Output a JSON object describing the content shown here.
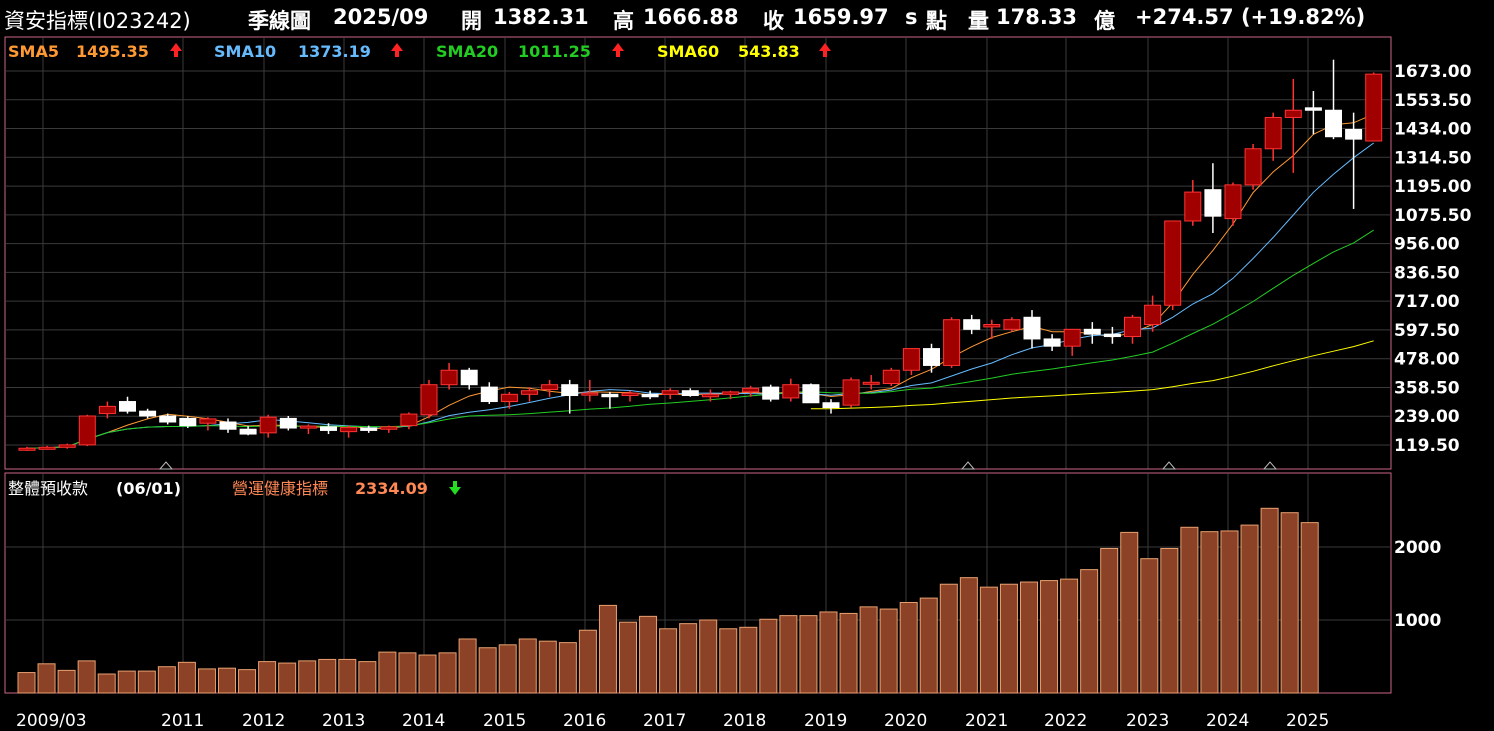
{
  "header": {
    "title": "資安指標(I023242)",
    "period": "季線圖",
    "date": "2025/09",
    "open_label": "開",
    "open": "1382.31",
    "high_label": "高",
    "high": "1666.88",
    "close_label": "收",
    "close": "1659.97",
    "close_suffix": "s",
    "points_label": "點",
    "volume_label": "量",
    "volume": "178.33",
    "volume_unit": "億",
    "change": "+274.57 (+19.82%)"
  },
  "upper_legend": [
    {
      "label": "SMA5",
      "value": "1495.35",
      "arrow": "up",
      "color": "#ff9933"
    },
    {
      "label": "SMA10",
      "value": "1373.19",
      "arrow": "up",
      "color": "#66bbff"
    },
    {
      "label": "SMA20",
      "value": "1011.25",
      "arrow": "up",
      "color": "#22cc22"
    },
    {
      "label": "SMA60",
      "value": "543.83",
      "arrow": "up",
      "color": "#ffff00"
    }
  ],
  "lower_legend": {
    "name": "整體預收款",
    "date": "(06/01)",
    "indicator": "營運健康指標",
    "indicator_value": "2334.09",
    "arrow": "down",
    "indicator_color": "#ff8855"
  },
  "colors": {
    "up_candle": "#a00000",
    "down_candle": "#ffffff",
    "bar_fill": "#8b4226",
    "bar_stroke": "#e8a070",
    "frame": "#cc6688",
    "grid": "#3a3a3a",
    "arrow_up": "#ff2222",
    "arrow_down": "#22dd22"
  },
  "chart_data": [
    {
      "type": "candlestick",
      "title": "資安指標(I023242) 季線圖",
      "x_tick_labels": [
        "2009/03",
        "2011",
        "2012",
        "2013",
        "2014",
        "2015",
        "2016",
        "2017",
        "2018",
        "2019",
        "2020",
        "2021",
        "2022",
        "2023",
        "2024",
        "2025"
      ],
      "y_tick_labels": [
        "1673.00",
        "1553.50",
        "1434.00",
        "1314.50",
        "1195.00",
        "1075.50",
        "956.00",
        "836.50",
        "717.00",
        "597.50",
        "478.00",
        "358.50",
        "239.00",
        "119.50"
      ],
      "ylim": [
        72,
        1722
      ],
      "grid": true,
      "ohlc": [
        [
          100,
          112,
          95,
          106
        ],
        [
          106,
          116,
          100,
          110
        ],
        [
          110,
          125,
          104,
          120
        ],
        [
          120,
          245,
          115,
          240
        ],
        [
          250,
          300,
          230,
          280
        ],
        [
          300,
          320,
          250,
          260
        ],
        [
          260,
          270,
          230,
          240
        ],
        [
          240,
          250,
          205,
          215
        ],
        [
          230,
          240,
          190,
          200
        ],
        [
          210,
          235,
          180,
          228
        ],
        [
          215,
          230,
          170,
          185
        ],
        [
          185,
          200,
          160,
          165
        ],
        [
          170,
          245,
          150,
          235
        ],
        [
          230,
          240,
          180,
          190
        ],
        [
          190,
          205,
          165,
          198
        ],
        [
          195,
          210,
          165,
          180
        ],
        [
          175,
          200,
          150,
          192
        ],
        [
          190,
          200,
          170,
          180
        ],
        [
          185,
          200,
          170,
          195
        ],
        [
          200,
          255,
          185,
          248
        ],
        [
          245,
          390,
          230,
          370
        ],
        [
          370,
          460,
          350,
          430
        ],
        [
          430,
          440,
          350,
          370
        ],
        [
          360,
          380,
          290,
          300
        ],
        [
          300,
          340,
          270,
          330
        ],
        [
          330,
          360,
          300,
          345
        ],
        [
          350,
          390,
          320,
          370
        ],
        [
          370,
          390,
          250,
          325
        ],
        [
          335,
          390,
          300,
          335
        ],
        [
          330,
          340,
          270,
          320
        ],
        [
          325,
          345,
          300,
          335
        ],
        [
          330,
          345,
          310,
          320
        ],
        [
          330,
          355,
          310,
          345
        ],
        [
          345,
          355,
          320,
          325
        ],
        [
          320,
          350,
          300,
          330
        ],
        [
          330,
          345,
          310,
          340
        ],
        [
          340,
          365,
          320,
          355
        ],
        [
          360,
          370,
          300,
          310
        ],
        [
          315,
          395,
          300,
          370
        ],
        [
          370,
          375,
          300,
          295
        ],
        [
          295,
          310,
          250,
          275
        ],
        [
          285,
          400,
          275,
          390
        ],
        [
          380,
          410,
          350,
          380
        ],
        [
          375,
          440,
          365,
          430
        ],
        [
          430,
          520,
          410,
          520
        ],
        [
          520,
          540,
          420,
          450
        ],
        [
          450,
          650,
          440,
          640
        ],
        [
          640,
          660,
          580,
          600
        ],
        [
          610,
          640,
          560,
          620
        ],
        [
          600,
          650,
          590,
          640
        ],
        [
          650,
          680,
          520,
          560
        ],
        [
          560,
          580,
          510,
          530
        ],
        [
          530,
          600,
          490,
          600
        ],
        [
          600,
          630,
          540,
          580
        ],
        [
          580,
          610,
          540,
          570
        ],
        [
          570,
          660,
          540,
          650
        ],
        [
          620,
          740,
          590,
          700
        ],
        [
          700,
          1050,
          680,
          1050
        ],
        [
          1050,
          1220,
          1030,
          1170
        ],
        [
          1180,
          1290,
          1000,
          1070
        ],
        [
          1060,
          1210,
          1030,
          1200
        ],
        [
          1200,
          1370,
          1180,
          1350
        ],
        [
          1350,
          1500,
          1300,
          1480
        ],
        [
          1480,
          1640,
          1250,
          1510
        ],
        [
          1520,
          1590,
          1410,
          1510
        ],
        [
          1510,
          1720,
          1390,
          1400
        ],
        [
          1430,
          1500,
          1100,
          1390
        ],
        [
          1382.31,
          1666.88,
          1380,
          1659.97
        ]
      ],
      "indicators": [
        {
          "name": "SMA5",
          "value": 1495.35
        },
        {
          "name": "SMA10",
          "value": 1373.19
        },
        {
          "name": "SMA20",
          "value": 1011.25
        },
        {
          "name": "SMA60",
          "value": 543.83
        }
      ]
    },
    {
      "type": "bar",
      "title": "整體預收款 (06/01)",
      "series_name": "營運健康指標",
      "latest_value": 2334.09,
      "y_tick_labels": [
        "2000",
        "1000"
      ],
      "ylim": [
        0,
        2935
      ],
      "values": [
        280,
        400,
        310,
        440,
        260,
        300,
        300,
        360,
        420,
        330,
        340,
        320,
        430,
        410,
        440,
        460,
        460,
        430,
        560,
        550,
        520,
        550,
        740,
        620,
        660,
        740,
        710,
        690,
        860,
        1200,
        970,
        1050,
        880,
        950,
        1000,
        880,
        900,
        1010,
        1060,
        1060,
        1110,
        1090,
        1180,
        1150,
        1240,
        1300,
        1490,
        1580,
        1450,
        1490,
        1520,
        1540,
        1560,
        1690,
        1980,
        2200,
        1840,
        1980,
        2270,
        2210,
        2220,
        2300,
        2530,
        2470,
        2334.09
      ]
    }
  ]
}
